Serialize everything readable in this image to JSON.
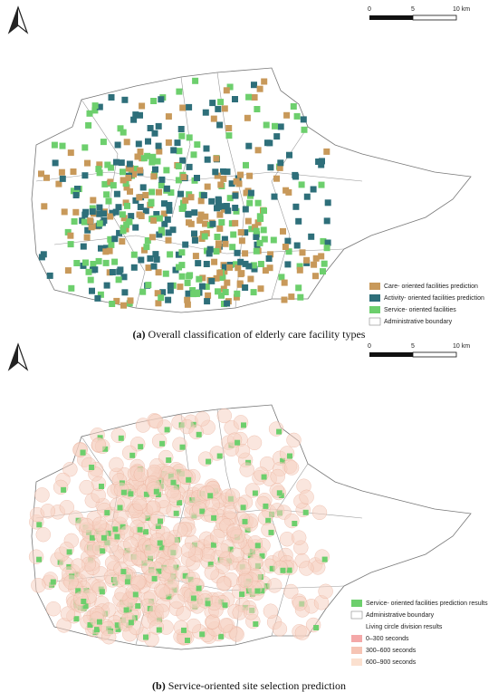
{
  "panels": [
    {
      "scale_bar": {
        "labels": [
          "0",
          "5",
          "10 km"
        ]
      },
      "legend": [
        "Care- oriented facilities prediction",
        "Activity- oriented facilities prediction",
        "Service- oriented facilities",
        "Administrative boundary"
      ],
      "caption": {
        "label": "(a)",
        "text": "Overall classification of elderly care facility types"
      }
    },
    {
      "scale_bar": {
        "labels": [
          "0",
          "5",
          "10 km"
        ]
      },
      "legend": [
        "Service- oriented facilities prediction results",
        "Administrative boundary",
        "Living circle division results",
        "0–300 seconds",
        "300–600 seconds",
        "600–900 seconds"
      ],
      "caption": {
        "label": "(b)",
        "text": "Service-oriented site selection prediction"
      }
    }
  ]
}
